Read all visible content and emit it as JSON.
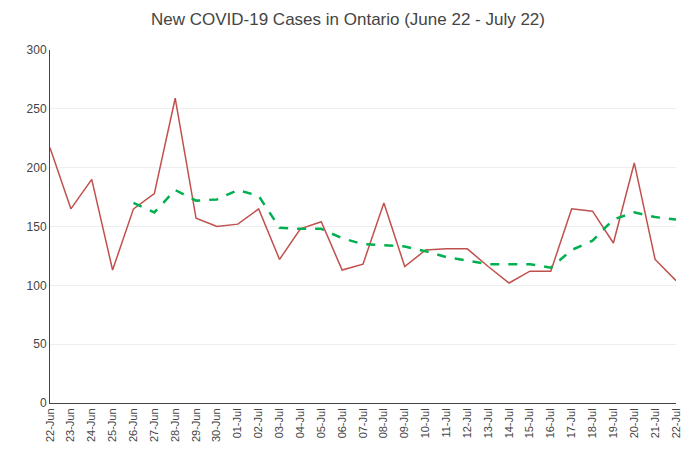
{
  "chart_data": {
    "type": "line",
    "title": "New COVID-19 Cases in Ontario (June 22 - July 22)",
    "categories": [
      "22-Jun",
      "23-Jun",
      "24-Jun",
      "25-Jun",
      "26-Jun",
      "27-Jun",
      "28-Jun",
      "29-Jun",
      "30-Jun",
      "01-Jul",
      "02-Jul",
      "03-Jul",
      "04-Jul",
      "05-Jul",
      "06-Jul",
      "07-Jul",
      "08-Jul",
      "09-Jul",
      "10-Jul",
      "11-Jul",
      "12-Jul",
      "13-Jul",
      "14-Jul",
      "15-Jul",
      "16-Jul",
      "17-Jul",
      "18-Jul",
      "19-Jul",
      "20-Jul",
      "21-Jul",
      "22-Jul"
    ],
    "series": [
      {
        "color": "#c0504d",
        "line_style": "solid",
        "values": [
          217,
          165,
          190,
          113,
          165,
          178,
          259,
          157,
          150,
          152,
          165,
          122,
          148,
          154,
          113,
          118,
          170,
          116,
          130,
          131,
          131,
          116,
          102,
          112,
          112,
          165,
          163,
          136,
          204,
          122,
          104
        ]
      },
      {
        "color": "#00b050",
        "line_style": "dashed",
        "values": [
          null,
          null,
          null,
          null,
          170,
          162,
          181,
          172,
          173,
          181,
          176,
          149,
          148,
          148,
          140,
          135,
          134,
          133,
          129,
          124,
          121,
          118,
          118,
          118,
          115,
          130,
          138,
          156,
          162,
          158,
          156
        ]
      }
    ],
    "ylim": [
      0,
      300
    ],
    "yticks": [
      0,
      50,
      100,
      150,
      200,
      250,
      300
    ],
    "grid": true
  }
}
